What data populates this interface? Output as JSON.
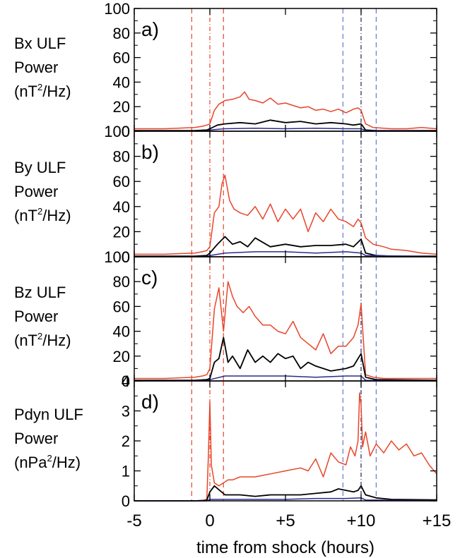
{
  "chart_data": {
    "type": "line",
    "xlabel": "time from shock (hours)",
    "xlim": [
      -5,
      15
    ],
    "xticks": [
      "-5",
      "0",
      "+5",
      "+10",
      "+15"
    ],
    "xtick_values": [
      -5,
      0,
      5,
      10,
      15
    ],
    "reference_lines": {
      "red_dashed": [
        -1.2,
        0.9
      ],
      "red_dashdot": [
        0
      ],
      "blue_dashed": [
        8.8,
        11.0
      ],
      "blue_dashdot": [
        10
      ]
    },
    "colors": {
      "red": "#e8452a",
      "black": "#000000",
      "blue": "#2c2a8c",
      "red_ref": "#e8452a",
      "blue_ref": "#6a78c8"
    },
    "panels": [
      {
        "letter": "a)",
        "label_lines": [
          "Bx ULF",
          "Power",
          "(nT",
          "2",
          "/Hz)"
        ],
        "ylim": [
          0,
          100
        ],
        "yticks": [
          0,
          20,
          40,
          60,
          80,
          100
        ],
        "series": [
          {
            "color": "red",
            "x": [
              -5,
              -3,
              -1,
              -0.5,
              -0.2,
              0,
              0.3,
              0.6,
              1,
              1.5,
              2,
              2.3,
              2.6,
              3,
              3.5,
              4,
              4.5,
              5,
              5.5,
              6,
              6.5,
              7,
              7.5,
              8,
              8.5,
              9,
              9.5,
              9.8,
              10,
              10.3,
              10.8,
              12,
              13,
              14,
              15
            ],
            "y": [
              2,
              2,
              3,
              4,
              5,
              6,
              17,
              22,
              25,
              26,
              28,
              32,
              26,
              25,
              23,
              27,
              22,
              23,
              21,
              19,
              20,
              17,
              18,
              16,
              18,
              15,
              18,
              19,
              17,
              6,
              3,
              2,
              2,
              3,
              2
            ]
          },
          {
            "color": "black",
            "x": [
              -5,
              -1,
              -0.2,
              0,
              0.5,
              1,
              2,
              3,
              4,
              5,
              6,
              7,
              8,
              9,
              9.5,
              10,
              10.3,
              11,
              15
            ],
            "y": [
              0.5,
              0.5,
              1,
              2,
              5,
              6,
              7,
              6,
              9,
              7,
              8,
              6,
              7,
              6,
              5,
              6,
              1,
              0.5,
              0.5
            ]
          },
          {
            "color": "blue",
            "x": [
              -5,
              -0.2,
              0,
              1,
              3,
              5,
              7,
              9,
              10,
              10.3,
              15
            ],
            "y": [
              0.2,
              0.2,
              1,
              2,
              2.5,
              2,
              2.5,
              2,
              2,
              0.5,
              0.2
            ]
          }
        ]
      },
      {
        "letter": "b)",
        "label_lines": [
          "By ULF",
          "Power",
          "(nT",
          "2",
          "/Hz)"
        ],
        "ylim": [
          0,
          100
        ],
        "yticks": [
          0,
          20,
          40,
          60,
          80,
          100
        ],
        "series": [
          {
            "color": "red",
            "x": [
              -5,
              -3,
              -1,
              -0.5,
              -0.2,
              0,
              0.3,
              0.6,
              0.8,
              1,
              1.3,
              1.6,
              2,
              2.5,
              3,
              3.5,
              4,
              4.5,
              5,
              5.5,
              6,
              6.5,
              7,
              7.5,
              8,
              8.5,
              9,
              9.5,
              9.8,
              10,
              10.3,
              10.8,
              11.5,
              12,
              13,
              14,
              15
            ],
            "y": [
              2,
              2,
              3,
              4,
              5,
              8,
              35,
              40,
              58,
              65,
              45,
              38,
              35,
              33,
              40,
              30,
              42,
              28,
              38,
              30,
              38,
              20,
              35,
              28,
              38,
              30,
              28,
              24,
              30,
              27,
              15,
              10,
              8,
              6,
              5,
              3,
              2
            ]
          },
          {
            "color": "black",
            "x": [
              -5,
              -1,
              -0.2,
              0,
              0.5,
              1,
              1.5,
              2,
              2.5,
              3,
              4,
              5,
              6,
              7,
              8,
              9,
              9.5,
              10,
              10.3,
              11,
              12,
              15
            ],
            "y": [
              0.5,
              0.5,
              1,
              3,
              10,
              16,
              10,
              12,
              8,
              15,
              8,
              10,
              8,
              9,
              9,
              10,
              8,
              14,
              3,
              1,
              0.5,
              0.5
            ]
          },
          {
            "color": "blue",
            "x": [
              -5,
              -0.2,
              0,
              1,
              3,
              5,
              7,
              9,
              10,
              10.3,
              15
            ],
            "y": [
              0.2,
              0.2,
              1,
              3,
              4,
              4,
              3,
              4,
              3,
              1,
              0.2
            ]
          }
        ]
      },
      {
        "letter": "c)",
        "label_lines": [
          "Bz ULF",
          "Power",
          "(nT",
          "2",
          "/Hz)"
        ],
        "ylim": [
          0,
          100
        ],
        "yticks": [
          0,
          20,
          40,
          60,
          80,
          100
        ],
        "series": [
          {
            "color": "red",
            "x": [
              -5,
              -3,
              -1,
              -0.5,
              -0.2,
              0,
              0.3,
              0.6,
              0.9,
              1.2,
              1.5,
              1.8,
              2.2,
              2.6,
              3,
              3.5,
              4,
              4.5,
              5,
              5.5,
              6,
              6.5,
              7,
              7.5,
              8,
              8.5,
              9,
              9.5,
              9.8,
              10,
              10.3,
              10.8,
              11.5,
              13,
              15
            ],
            "y": [
              2,
              2,
              3,
              4,
              5,
              10,
              58,
              75,
              40,
              80,
              68,
              60,
              55,
              60,
              52,
              45,
              45,
              40,
              38,
              48,
              35,
              30,
              25,
              38,
              22,
              28,
              28,
              35,
              45,
              62,
              5,
              3,
              2,
              2,
              2
            ]
          },
          {
            "color": "black",
            "x": [
              -5,
              -1,
              -0.2,
              0,
              0.3,
              0.6,
              0.9,
              1.2,
              1.5,
              2,
              2.5,
              3,
              3.5,
              4,
              4.5,
              5,
              5.5,
              6,
              6.5,
              7,
              8,
              9,
              9.5,
              9.8,
              10,
              10.3,
              11,
              15
            ],
            "y": [
              0.5,
              0.5,
              1,
              2,
              15,
              18,
              35,
              15,
              20,
              10,
              25,
              15,
              20,
              15,
              22,
              18,
              20,
              10,
              15,
              12,
              8,
              10,
              12,
              18,
              22,
              3,
              1,
              0.5
            ]
          },
          {
            "color": "blue",
            "x": [
              -5,
              -0.2,
              0,
              1,
              3,
              5,
              7,
              9,
              10,
              10.3,
              15
            ],
            "y": [
              0.2,
              0.2,
              1,
              4,
              4,
              4,
              3,
              4,
              4,
              0.5,
              0.2
            ]
          }
        ]
      },
      {
        "letter": "d)",
        "label_lines": [
          "Pdyn ULF",
          "Power",
          "(nPa",
          "2",
          "/Hz)"
        ],
        "ylim": [
          0,
          4
        ],
        "yticks": [
          0,
          1,
          2,
          3,
          4
        ],
        "series": [
          {
            "color": "red",
            "x": [
              -5,
              -3,
              -1,
              -0.5,
              -0.2,
              -0.1,
              0,
              0.1,
              0.3,
              0.6,
              0.9,
              1.2,
              1.5,
              2,
              3,
              4,
              5,
              6,
              6.5,
              7,
              7.5,
              8,
              8.5,
              9,
              9.3,
              9.6,
              9.8,
              9.9,
              10,
              10.1,
              10.3,
              10.6,
              11,
              11.5,
              12,
              12.5,
              13,
              13.5,
              14,
              14.5,
              15
            ],
            "y": [
              0,
              0,
              0,
              0,
              0.05,
              1.5,
              3.3,
              1.2,
              0.6,
              0.5,
              0.6,
              0.7,
              0.7,
              0.8,
              0.8,
              0.9,
              1.0,
              1.1,
              1.0,
              1.4,
              0.8,
              1.6,
              1.3,
              1.2,
              1.8,
              1.5,
              2.0,
              3.6,
              3.2,
              1.8,
              2.3,
              1.5,
              1.9,
              1.6,
              2.0,
              1.7,
              1.9,
              1.5,
              1.6,
              1.2,
              0.9
            ]
          },
          {
            "color": "black",
            "x": [
              -5,
              -1,
              -0.2,
              0,
              0.3,
              1,
              2,
              3,
              4,
              5,
              6,
              7,
              8,
              8.5,
              9,
              9.5,
              9.8,
              10,
              10.3,
              11,
              12,
              15
            ],
            "y": [
              0,
              0,
              0.02,
              0.3,
              0.5,
              0.2,
              0.2,
              0.15,
              0.2,
              0.2,
              0.2,
              0.25,
              0.3,
              0.4,
              0.35,
              0.3,
              0.35,
              0.5,
              0.2,
              0.1,
              0.05,
              0.03
            ]
          },
          {
            "color": "blue",
            "x": [
              -5,
              -0.2,
              0,
              1,
              3,
              5,
              7,
              9,
              10,
              10.3,
              15
            ],
            "y": [
              0,
              0,
              0.05,
              0.05,
              0.05,
              0.05,
              0.08,
              0.08,
              0.1,
              0.03,
              0.01
            ]
          }
        ]
      }
    ]
  }
}
